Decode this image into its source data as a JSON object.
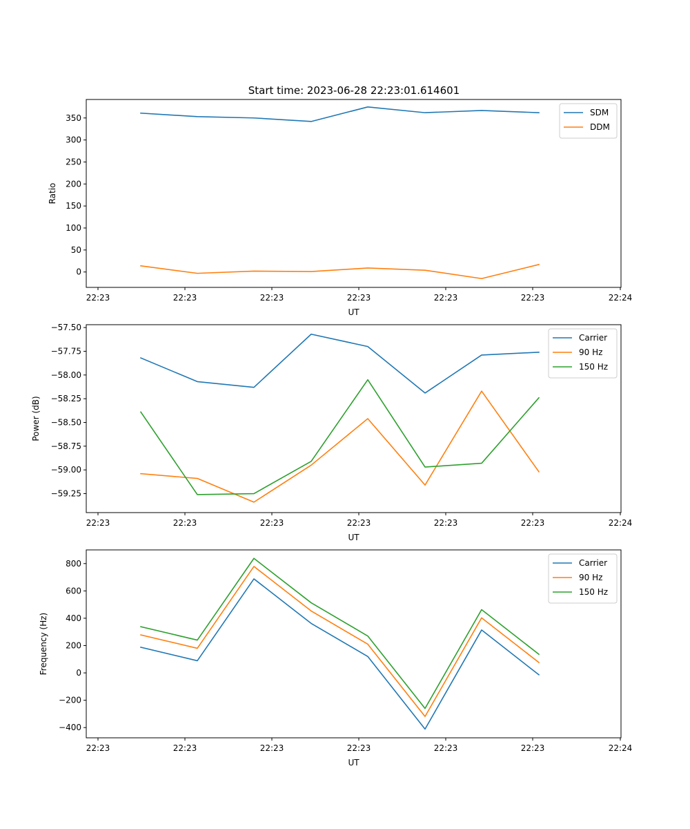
{
  "figure_title": "Start time: 2023-06-28 22:23:01.614601",
  "colors": {
    "blue": "#1f77b4",
    "orange": "#ff7f0e",
    "green": "#2ca02c"
  },
  "chart_data": [
    {
      "type": "line",
      "xlabel": "UT",
      "ylabel": "Ratio",
      "x_tick_labels": [
        "22:23",
        "22:23",
        "22:23",
        "22:23",
        "22:23",
        "22:23",
        "22:24"
      ],
      "y_ticks": [
        0,
        50,
        100,
        150,
        200,
        250,
        300,
        350
      ],
      "y_tick_labels": [
        "0",
        "50",
        "100",
        "150",
        "200",
        "250",
        "300",
        "350"
      ],
      "ylim": [
        -35,
        392
      ],
      "legend_position": "top-right",
      "series": [
        {
          "name": "SDM",
          "color": "#1f77b4",
          "values": [
            361,
            353,
            350,
            342,
            375,
            362,
            367,
            362
          ]
        },
        {
          "name": "DDM",
          "color": "#ff7f0e",
          "values": [
            14,
            -3,
            2,
            1,
            9,
            4,
            -15,
            17
          ]
        }
      ]
    },
    {
      "type": "line",
      "xlabel": "UT",
      "ylabel": "Power (dB)",
      "x_tick_labels": [
        "22:23",
        "22:23",
        "22:23",
        "22:23",
        "22:23",
        "22:23",
        "22:24"
      ],
      "y_ticks": [
        -59.25,
        -59.0,
        -58.75,
        -58.5,
        -58.25,
        -58.0,
        -57.75,
        -57.5
      ],
      "y_tick_labels": [
        "−59.25",
        "−59.00",
        "−58.75",
        "−58.50",
        "−58.25",
        "−58.00",
        "−57.75",
        "−57.50"
      ],
      "ylim": [
        -59.45,
        -57.47
      ],
      "legend_position": "top-right",
      "series": [
        {
          "name": "Carrier",
          "color": "#1f77b4",
          "values": [
            -57.82,
            -58.07,
            -58.13,
            -57.57,
            -57.7,
            -58.19,
            -57.79,
            -57.76
          ]
        },
        {
          "name": "90 Hz",
          "color": "#ff7f0e",
          "values": [
            -59.04,
            -59.09,
            -59.34,
            -58.95,
            -58.46,
            -59.16,
            -58.17,
            -59.02
          ]
        },
        {
          "name": "150 Hz",
          "color": "#2ca02c",
          "values": [
            -58.39,
            -59.26,
            -59.25,
            -58.91,
            -58.05,
            -58.97,
            -58.93,
            -58.24
          ]
        }
      ]
    },
    {
      "type": "line",
      "xlabel": "UT",
      "ylabel": "Frequency (Hz)",
      "x_tick_labels": [
        "22:23",
        "22:23",
        "22:23",
        "22:23",
        "22:23",
        "22:23",
        "22:24"
      ],
      "y_ticks": [
        -400,
        -200,
        0,
        200,
        400,
        600,
        800
      ],
      "y_tick_labels": [
        "−400",
        "−200",
        "0",
        "200",
        "400",
        "600",
        "800"
      ],
      "ylim": [
        -475,
        900
      ],
      "legend_position": "top-right",
      "series": [
        {
          "name": "Carrier",
          "color": "#1f77b4",
          "values": [
            188,
            89,
            688,
            362,
            120,
            -411,
            314,
            -14
          ]
        },
        {
          "name": "90 Hz",
          "color": "#ff7f0e",
          "values": [
            278,
            180,
            779,
            453,
            210,
            -319,
            403,
            76
          ]
        },
        {
          "name": "150 Hz",
          "color": "#2ca02c",
          "values": [
            338,
            240,
            838,
            513,
            270,
            -260,
            463,
            136
          ]
        }
      ]
    }
  ]
}
